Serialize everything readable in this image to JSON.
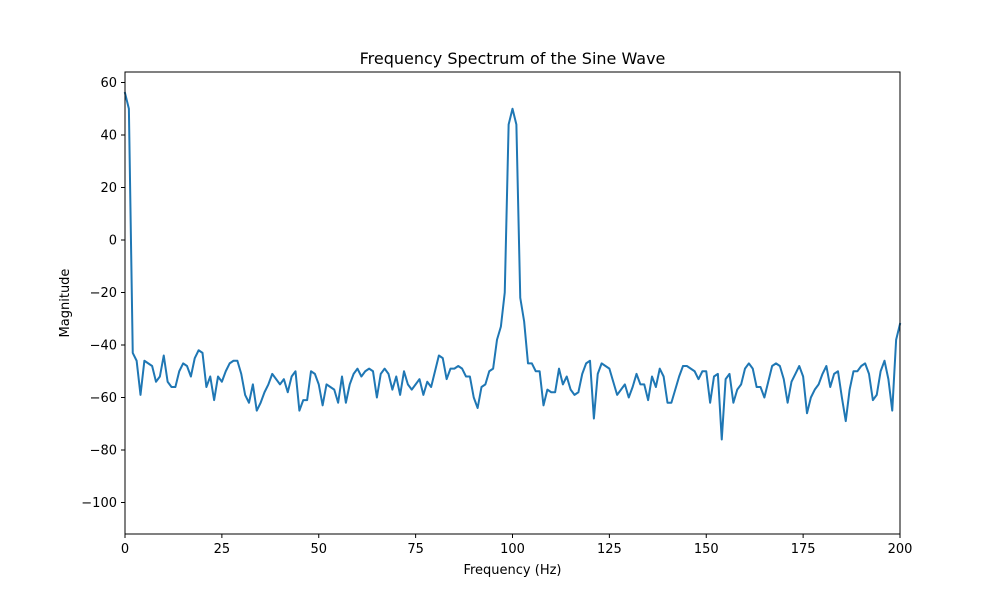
{
  "chart_data": {
    "type": "line",
    "title": "Frequency Spectrum of the Sine Wave",
    "xlabel": "Frequency (Hz)",
    "ylabel": "Magnitude",
    "xlim": [
      0,
      200
    ],
    "ylim": [
      -112,
      64
    ],
    "xticks": [
      0,
      25,
      50,
      75,
      100,
      125,
      150,
      175,
      200
    ],
    "yticks": [
      60,
      40,
      20,
      0,
      -20,
      -40,
      -60,
      -80,
      -100
    ],
    "grid": false,
    "legend": "none",
    "line_color": "#1f77b4",
    "series": [
      {
        "x": [
          0,
          1,
          2,
          3,
          4,
          5,
          6,
          7,
          8,
          9,
          10,
          11,
          12,
          13,
          14,
          15,
          16,
          17,
          18,
          19,
          20,
          21,
          22,
          23,
          24,
          25,
          26,
          27,
          28,
          29,
          30,
          31,
          32,
          33,
          34,
          35,
          36,
          37,
          38,
          39,
          40,
          41,
          42,
          43,
          44,
          45,
          46,
          47,
          48,
          49,
          50,
          51,
          52,
          53,
          54,
          55,
          56,
          57,
          58,
          59,
          60,
          61,
          62,
          63,
          64,
          65,
          66,
          67,
          68,
          69,
          70,
          71,
          72,
          73,
          74,
          75,
          76,
          77,
          78,
          79,
          80,
          81,
          82,
          83,
          84,
          85,
          86,
          87,
          88,
          89,
          90,
          91,
          92,
          93,
          94,
          95,
          96,
          97,
          98,
          99,
          100,
          101,
          102,
          103,
          104,
          105,
          106,
          107,
          108,
          109,
          110,
          111,
          112,
          113,
          114,
          115,
          116,
          117,
          118,
          119,
          120,
          121,
          122,
          123,
          124,
          125,
          126,
          127,
          128,
          129,
          130,
          131,
          132,
          133,
          134,
          135,
          136,
          137,
          138,
          139,
          140,
          141,
          142,
          143,
          144,
          145,
          146,
          147,
          148,
          149,
          150,
          151,
          152,
          153,
          154,
          155,
          156,
          157,
          158,
          159,
          160,
          161,
          162,
          163,
          164,
          165,
          166,
          167,
          168,
          169,
          170,
          171,
          172,
          173,
          174,
          175,
          176,
          177,
          178,
          179,
          180,
          181,
          182,
          183,
          184,
          185,
          186,
          187,
          188,
          189,
          190,
          191,
          192,
          193,
          194,
          195,
          196,
          197,
          198,
          199,
          200
        ],
        "y": [
          56,
          50,
          -43,
          -46,
          -59,
          -46,
          -47,
          -48,
          -54,
          -52,
          -44,
          -54,
          -56,
          -56,
          -50,
          -47,
          -48,
          -52,
          -45,
          -42,
          -43,
          -56,
          -52,
          -61,
          -52,
          -54,
          -50,
          -47,
          -46,
          -46,
          -51,
          -59,
          -62,
          -55,
          -65,
          -62,
          -58,
          -55,
          -51,
          -53,
          -55,
          -53,
          -58,
          -52,
          -50,
          -65,
          -61,
          -61,
          -50,
          -51,
          -55,
          -63,
          -55,
          -56,
          -57,
          -62,
          -52,
          -62,
          -55,
          -51,
          -49,
          -52,
          -50,
          -49,
          -50,
          -60,
          -51,
          -49,
          -51,
          -57,
          -52,
          -59,
          -50,
          -55,
          -57,
          -55,
          -53,
          -59,
          -54,
          -56,
          -50,
          -44,
          -45,
          -53,
          -49,
          -49,
          -48,
          -49,
          -52,
          -52,
          -60,
          -64,
          -56,
          -55,
          -50,
          -49,
          -38,
          -33,
          -20,
          44,
          50,
          44,
          -22,
          -31,
          -47,
          -47,
          -50,
          -50,
          -63,
          -57,
          -58,
          -58,
          -49,
          -55,
          -52,
          -57,
          -59,
          -58,
          -51,
          -47,
          -46,
          -68,
          -51,
          -47,
          -48,
          -49,
          -54,
          -59,
          -57,
          -55,
          -60,
          -56,
          -51,
          -55,
          -55,
          -61,
          -52,
          -56,
          -49,
          -52,
          -62,
          -62,
          -57,
          -52,
          -48,
          -48,
          -49,
          -50,
          -53,
          -50,
          -50,
          -62,
          -52,
          -51,
          -76,
          -53,
          -51,
          -62,
          -57,
          -55,
          -49,
          -47,
          -49,
          -56,
          -56,
          -60,
          -54,
          -48,
          -47,
          -48,
          -53,
          -62,
          -54,
          -51,
          -48,
          -52,
          -66,
          -60,
          -57,
          -55,
          -51,
          -48,
          -56,
          -51,
          -50,
          -60,
          -69,
          -57,
          -50,
          -50,
          -48,
          -47,
          -51,
          -61,
          -59,
          -50,
          -46,
          -53,
          -65,
          -38,
          -32
        ]
      }
    ]
  }
}
